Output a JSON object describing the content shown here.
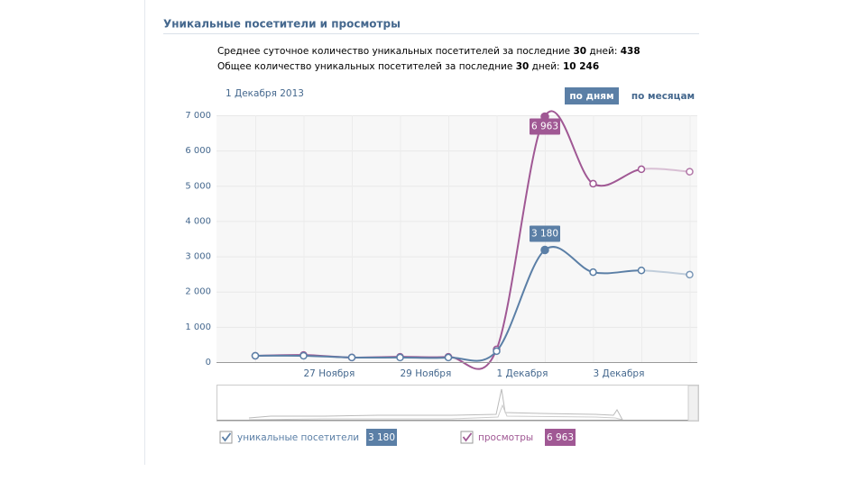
{
  "header": {
    "title": "Уникальные посетители и просмотры"
  },
  "stats": [
    {
      "text": "Среднее суточное количество уникальных посетителей за последние ",
      "days": "30",
      "days_suffix": " дней: ",
      "value": "438"
    },
    {
      "text": "Общее количество уникальных посетителей за последние ",
      "days": "30",
      "days_suffix": " дней: ",
      "value": "10 246"
    }
  ],
  "date": "1 Декабря 2013",
  "tabs": [
    "по дням",
    "по месяцам"
  ],
  "chart_data": {
    "type": "line",
    "categories": [
      null,
      "27 Ноября",
      null,
      "29 Ноября",
      null,
      "1 Декабря",
      null,
      "3 Декабря",
      null,
      null
    ],
    "series": [
      {
        "name": "уникальные посетители",
        "color": "#5b7fa6",
        "values": [
          180,
          180,
          130,
          130,
          130,
          310,
          3180,
          2550,
          2600,
          2480
        ],
        "value_labels": [
          null,
          null,
          null,
          null,
          null,
          null,
          "3 180",
          null,
          null,
          null
        ]
      },
      {
        "name": "просмотры",
        "color": "#a05894",
        "values": [
          180,
          200,
          130,
          150,
          150,
          360,
          6963,
          5060,
          5470,
          5400
        ],
        "value_labels": [
          null,
          null,
          null,
          null,
          null,
          null,
          "6 963",
          null,
          null,
          null
        ]
      }
    ],
    "ylim": [
      0,
      7000
    ],
    "yticks": [
      0,
      {
        "value": 1000,
        "label": "1 000"
      },
      {
        "value": 2000,
        "label": "2 000"
      },
      {
        "value": 3000,
        "label": "3 000"
      },
      {
        "value": 4000,
        "label": "4 000"
      },
      {
        "value": 5000,
        "label": "5 000"
      },
      {
        "value": 6000,
        "label": "6 000"
      },
      {
        "value": 7000,
        "label": "7 000"
      }
    ],
    "grid": true
  }
}
